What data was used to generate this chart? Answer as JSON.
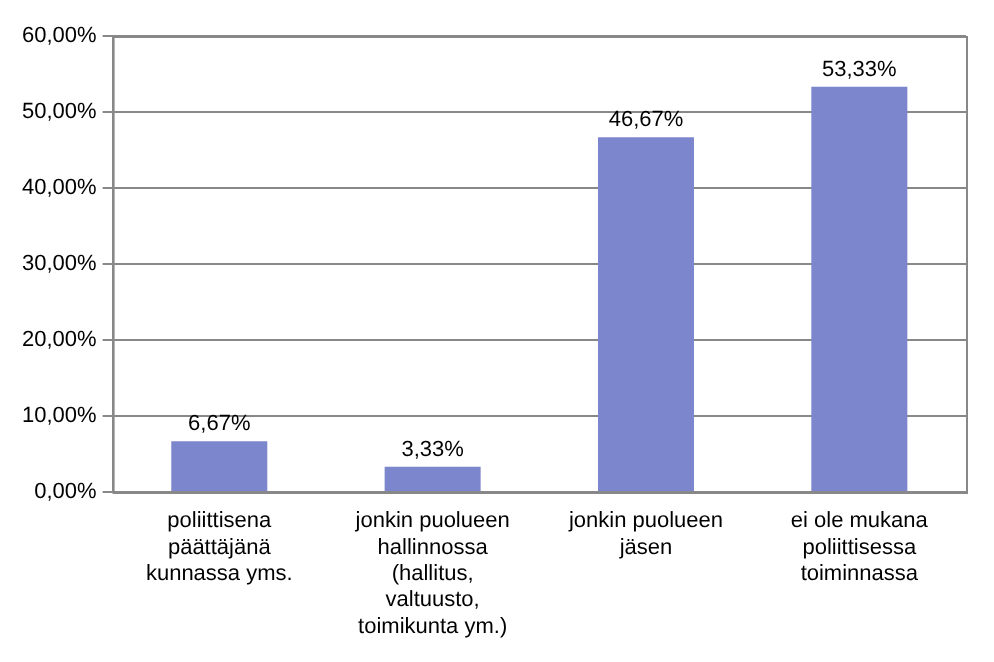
{
  "chart_data": {
    "type": "bar",
    "categories": [
      "poliittisena päättäjänä kunnassa yms.",
      "jonkin puolueen hallinnossa (hallitus, valtuusto, toimikunta ym.)",
      "jonkin puolueen jäsen",
      "ei ole mukana poliittisessa toiminnassa"
    ],
    "values": [
      6.67,
      3.33,
      46.67,
      53.33
    ],
    "value_labels": [
      "6,67%",
      "3,33%",
      "46,67%",
      "53,33%"
    ],
    "color": "#7b86cc",
    "ylim": [
      0,
      60
    ],
    "yticks": [
      {
        "value": 0,
        "label": "0,00%"
      },
      {
        "value": 10,
        "label": "10,00%"
      },
      {
        "value": 20,
        "label": "20,00%"
      },
      {
        "value": 30,
        "label": "30,00%"
      },
      {
        "value": 40,
        "label": "40,00%"
      },
      {
        "value": 50,
        "label": "50,00%"
      },
      {
        "value": 60,
        "label": "60,00%"
      }
    ],
    "grid": "y",
    "legend": false
  }
}
